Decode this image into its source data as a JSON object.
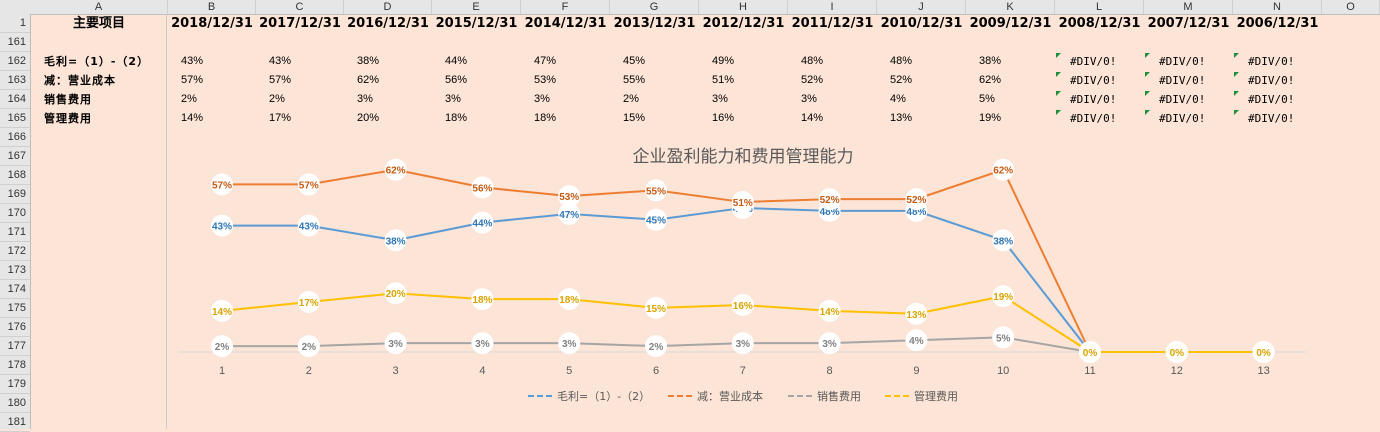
{
  "columns": [
    "A",
    "B",
    "C",
    "D",
    "E",
    "F",
    "G",
    "H",
    "I",
    "J",
    "K",
    "L",
    "M",
    "N",
    "O"
  ],
  "rows": [
    "1",
    "161",
    "162",
    "163",
    "164",
    "165",
    "166",
    "167",
    "168",
    "169",
    "170",
    "171",
    "172",
    "173",
    "174",
    "175",
    "176",
    "177",
    "178",
    "179",
    "180",
    "181"
  ],
  "header_label": "主要项目",
  "dates": [
    "2018/12/31",
    "2017/12/31",
    "2016/12/31",
    "2015/12/31",
    "2014/12/31",
    "2013/12/31",
    "2012/12/31",
    "2011/12/31",
    "2010/12/31",
    "2009/12/31",
    "2008/12/31",
    "2007/12/31",
    "2006/12/31"
  ],
  "table": [
    {
      "label": "毛利=（1）-（2）",
      "values": [
        "43%",
        "43%",
        "38%",
        "44%",
        "47%",
        "45%",
        "49%",
        "48%",
        "48%",
        "38%"
      ],
      "errors": [
        "#DIV/0!",
        "#DIV/0!",
        "#DIV/0!"
      ]
    },
    {
      "label": "减：营业成本",
      "values": [
        "57%",
        "57%",
        "62%",
        "56%",
        "53%",
        "55%",
        "51%",
        "52%",
        "52%",
        "62%"
      ],
      "errors": [
        "#DIV/0!",
        "#DIV/0!",
        "#DIV/0!"
      ]
    },
    {
      "label": "销售费用",
      "values": [
        "2%",
        "2%",
        "3%",
        "3%",
        "3%",
        "2%",
        "3%",
        "3%",
        "4%",
        "5%"
      ],
      "errors": [
        "#DIV/0!",
        "#DIV/0!",
        "#DIV/0!"
      ]
    },
    {
      "label": "管理费用",
      "values": [
        "14%",
        "17%",
        "20%",
        "18%",
        "18%",
        "15%",
        "16%",
        "14%",
        "13%",
        "19%"
      ],
      "errors": [
        "#DIV/0!",
        "#DIV/0!",
        "#DIV/0!"
      ]
    }
  ],
  "chart_data": {
    "type": "line",
    "title": "企业盈利能力和费用管理能力",
    "categories": [
      "1",
      "2",
      "3",
      "4",
      "5",
      "6",
      "7",
      "8",
      "9",
      "10",
      "11",
      "12",
      "13"
    ],
    "ylim": [
      0,
      0.7
    ],
    "legend_position": "bottom",
    "series": [
      {
        "name": "毛利=（1）-（2）",
        "color": "#5B9BD5",
        "labelColor": "#2E75B6",
        "values": [
          0.43,
          0.43,
          0.38,
          0.44,
          0.47,
          0.45,
          0.49,
          0.48,
          0.48,
          0.38,
          0,
          0,
          0
        ]
      },
      {
        "name": "减：营业成本",
        "color": "#ED7D31",
        "labelColor": "#C55A11",
        "values": [
          0.57,
          0.57,
          0.62,
          0.56,
          0.53,
          0.55,
          0.51,
          0.52,
          0.52,
          0.62,
          0,
          0,
          0
        ]
      },
      {
        "name": "销售费用",
        "color": "#A5A5A5",
        "labelColor": "#808080",
        "values": [
          0.02,
          0.02,
          0.03,
          0.03,
          0.03,
          0.02,
          0.03,
          0.03,
          0.04,
          0.05,
          0,
          0,
          0
        ]
      },
      {
        "name": "管理费用",
        "color": "#FFC000",
        "labelColor": "#D9A300",
        "values": [
          0.14,
          0.17,
          0.2,
          0.18,
          0.18,
          0.15,
          0.16,
          0.14,
          0.13,
          0.19,
          0,
          0,
          0
        ]
      }
    ]
  }
}
